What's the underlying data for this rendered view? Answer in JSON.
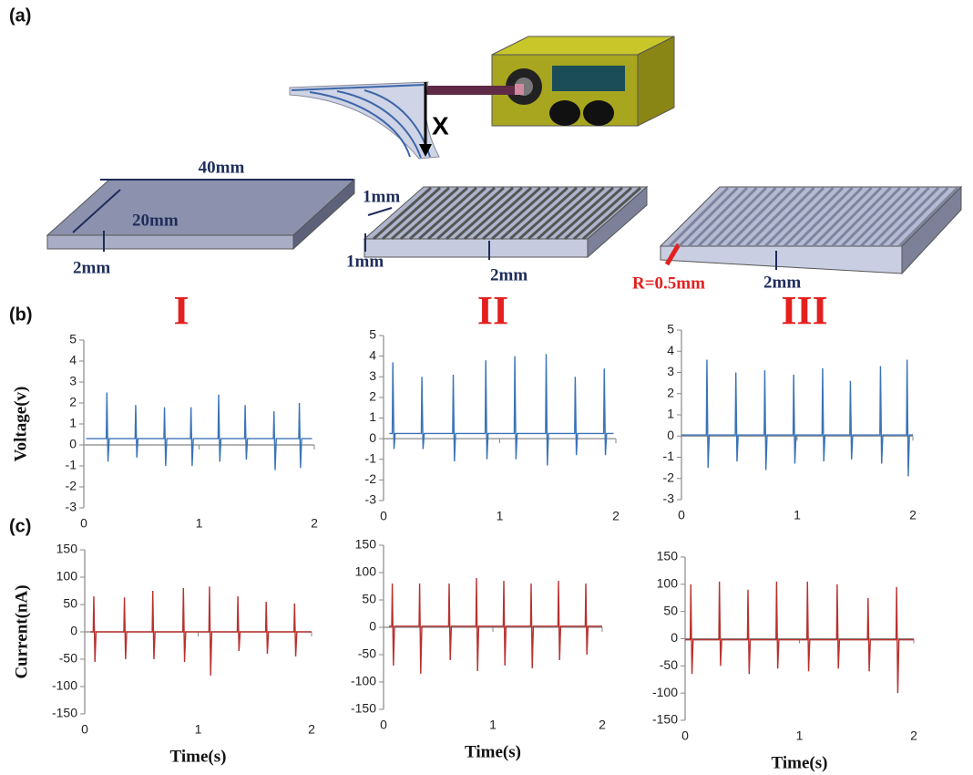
{
  "figure": {
    "panel_labels": [
      "(a)",
      "(b)",
      "(c)"
    ],
    "diagram_labels": [
      "X",
      "40mm",
      "20mm",
      "2mm",
      "1mm",
      "1mm",
      "2mm",
      "R=0.5mm",
      "2mm"
    ],
    "column_labels": [
      "I",
      "II",
      "III"
    ]
  },
  "chart_data": [
    {
      "type": "line",
      "ylabel": "Voltage(v)",
      "color": "#3a73b8",
      "xlim": [
        0,
        2
      ],
      "xticks": [
        0,
        1,
        2
      ],
      "ylim": [
        -3,
        5
      ],
      "yticks": [
        -3,
        -2,
        -1,
        0,
        1,
        2,
        3,
        4,
        5
      ],
      "x": [
        0.02,
        0.195,
        0.2,
        0.21,
        0.22,
        0.445,
        0.45,
        0.46,
        0.47,
        0.695,
        0.7,
        0.71,
        0.72,
        0.925,
        0.93,
        0.94,
        0.95,
        1.165,
        1.17,
        1.18,
        1.19,
        1.395,
        1.4,
        1.41,
        1.42,
        1.645,
        1.65,
        1.66,
        1.67,
        1.865,
        1.87,
        1.88,
        1.89,
        1.98
      ],
      "values": [
        0.3,
        0.3,
        2.5,
        -0.8,
        0.3,
        0.3,
        1.9,
        -0.6,
        0.3,
        0.3,
        1.8,
        -1.0,
        0.3,
        0.3,
        1.8,
        -1.0,
        0.3,
        0.3,
        2.4,
        -0.8,
        0.3,
        0.3,
        1.9,
        -0.7,
        0.3,
        0.3,
        1.6,
        -1.2,
        0.3,
        0.3,
        2.0,
        -1.1,
        0.3,
        0.3
      ]
    },
    {
      "type": "line",
      "color": "#3a73b8",
      "xlim": [
        0,
        2
      ],
      "xticks": [
        0,
        1,
        2
      ],
      "ylim": [
        -3,
        5
      ],
      "yticks": [
        -3,
        -2,
        -1,
        0,
        1,
        2,
        3,
        4,
        5
      ],
      "x": [
        0.05,
        0.075,
        0.08,
        0.09,
        0.1,
        0.325,
        0.33,
        0.34,
        0.35,
        0.595,
        0.6,
        0.61,
        0.62,
        0.875,
        0.88,
        0.89,
        0.9,
        1.125,
        1.13,
        1.14,
        1.15,
        1.395,
        1.4,
        1.41,
        1.42,
        1.645,
        1.65,
        1.66,
        1.67,
        1.895,
        1.9,
        1.91,
        1.92,
        1.98
      ],
      "values": [
        0.25,
        0.25,
        3.7,
        -0.5,
        0.25,
        0.25,
        3.0,
        -0.5,
        0.25,
        0.25,
        3.1,
        -1.1,
        0.25,
        0.25,
        3.8,
        -1.0,
        0.25,
        0.25,
        4.0,
        -1.0,
        0.25,
        0.25,
        4.1,
        -1.3,
        0.25,
        0.25,
        3.0,
        -0.8,
        0.25,
        0.25,
        3.4,
        -0.8,
        0.25,
        0.25
      ]
    },
    {
      "type": "line",
      "color": "#3a73b8",
      "xlim": [
        0,
        2
      ],
      "xticks": [
        0,
        1,
        2
      ],
      "ylim": [
        -3,
        5
      ],
      "yticks": [
        -3,
        -2,
        -1,
        0,
        1,
        2,
        3,
        4,
        5
      ],
      "x": [
        0,
        0.215,
        0.22,
        0.23,
        0.24,
        0.465,
        0.47,
        0.48,
        0.49,
        0.715,
        0.72,
        0.73,
        0.74,
        0.965,
        0.97,
        0.98,
        0.99,
        1.215,
        1.22,
        1.23,
        1.24,
        1.455,
        1.46,
        1.47,
        1.48,
        1.715,
        1.72,
        1.73,
        1.74,
        1.945,
        1.95,
        1.96,
        1.97,
        2
      ],
      "values": [
        0.05,
        0.05,
        3.6,
        -1.5,
        0.05,
        0.05,
        3.0,
        -1.2,
        0.05,
        0.05,
        3.1,
        -1.6,
        0.05,
        0.05,
        2.9,
        -1.3,
        0.05,
        0.05,
        3.2,
        -1.2,
        0.05,
        0.05,
        2.6,
        -1.1,
        0.05,
        0.05,
        3.3,
        -1.3,
        0.05,
        0.05,
        3.6,
        -1.9,
        0.05,
        0.05
      ]
    },
    {
      "type": "line",
      "ylabel": "Current(nA)",
      "xlabel": "Time(s)",
      "color": "#b8312f",
      "xlim": [
        0,
        2
      ],
      "xticks": [
        0,
        1,
        2
      ],
      "ylim": [
        -150,
        150
      ],
      "yticks": [
        -150,
        -100,
        -50,
        0,
        50,
        100,
        150
      ],
      "x": [
        0.05,
        0.075,
        0.08,
        0.09,
        0.1,
        0.345,
        0.35,
        0.36,
        0.37,
        0.595,
        0.6,
        0.61,
        0.62,
        0.865,
        0.87,
        0.88,
        0.89,
        1.095,
        1.1,
        1.11,
        1.12,
        1.345,
        1.35,
        1.36,
        1.37,
        1.595,
        1.6,
        1.61,
        1.62,
        1.845,
        1.85,
        1.86,
        1.87,
        2
      ],
      "values": [
        0,
        0,
        65,
        -55,
        0,
        0,
        63,
        -50,
        0,
        0,
        75,
        -50,
        0,
        0,
        80,
        -55,
        0,
        0,
        83,
        -80,
        0,
        0,
        65,
        -35,
        0,
        0,
        55,
        -40,
        0,
        0,
        52,
        -45,
        0,
        0
      ]
    },
    {
      "type": "line",
      "xlabel": "Time(s)",
      "color": "#b8312f",
      "xlim": [
        0,
        2
      ],
      "xticks": [
        0,
        1,
        2
      ],
      "ylim": [
        -150,
        150
      ],
      "yticks": [
        -150,
        -100,
        -50,
        0,
        50,
        100,
        150
      ],
      "x": [
        0.05,
        0.075,
        0.08,
        0.09,
        0.1,
        0.325,
        0.33,
        0.34,
        0.35,
        0.595,
        0.6,
        0.61,
        0.62,
        0.845,
        0.85,
        0.86,
        0.87,
        1.095,
        1.1,
        1.11,
        1.12,
        1.345,
        1.35,
        1.36,
        1.37,
        1.595,
        1.6,
        1.61,
        1.62,
        1.845,
        1.85,
        1.86,
        1.87,
        2
      ],
      "values": [
        2,
        2,
        80,
        -70,
        2,
        2,
        80,
        -85,
        2,
        2,
        80,
        -60,
        2,
        2,
        90,
        -80,
        2,
        2,
        85,
        -70,
        2,
        2,
        80,
        -75,
        2,
        2,
        85,
        -60,
        2,
        2,
        80,
        -50,
        2,
        2
      ]
    },
    {
      "type": "line",
      "xlabel": "Time(s)",
      "color": "#b8312f",
      "xlim": [
        0,
        2
      ],
      "xticks": [
        0,
        1,
        2
      ],
      "ylim": [
        -150,
        150
      ],
      "yticks": [
        -150,
        -100,
        -50,
        0,
        50,
        100,
        150
      ],
      "x": [
        0,
        0.045,
        0.05,
        0.06,
        0.07,
        0.295,
        0.3,
        0.31,
        0.32,
        0.545,
        0.55,
        0.56,
        0.57,
        0.795,
        0.8,
        0.81,
        0.82,
        1.065,
        1.07,
        1.08,
        1.09,
        1.325,
        1.33,
        1.34,
        1.35,
        1.595,
        1.6,
        1.61,
        1.62,
        1.845,
        1.85,
        1.86,
        1.87,
        2
      ],
      "values": [
        -2,
        -2,
        100,
        -65,
        -2,
        -2,
        105,
        -50,
        -2,
        -2,
        90,
        -65,
        -2,
        -2,
        105,
        -55,
        -2,
        -2,
        105,
        -60,
        -2,
        -2,
        100,
        -55,
        -2,
        -2,
        75,
        -60,
        -2,
        -2,
        95,
        -100,
        -2,
        -2
      ]
    }
  ]
}
